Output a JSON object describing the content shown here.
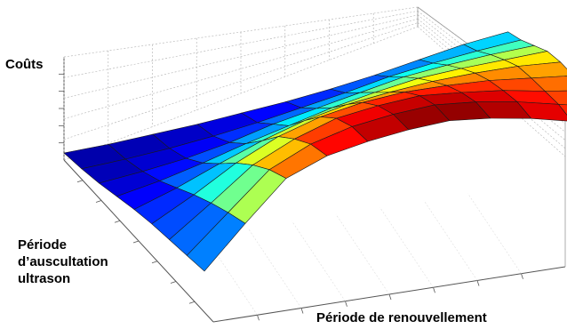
{
  "chart_data": {
    "type": "surface",
    "title": "",
    "zlabel": "Coûts",
    "ylabel_lines": [
      "Période",
      "d’auscultation",
      "ultrason"
    ],
    "xlabel": "Période de renouvellement",
    "grid": true,
    "colormap": "jet",
    "z": [
      [
        0.04,
        0.04,
        0.05,
        0.06,
        0.08,
        0.1,
        0.13,
        0.17,
        0.22,
        0.27,
        0.3
      ],
      [
        0.04,
        0.05,
        0.07,
        0.1,
        0.14,
        0.19,
        0.24,
        0.3,
        0.34,
        0.37,
        0.39
      ],
      [
        0.05,
        0.08,
        0.12,
        0.18,
        0.26,
        0.32,
        0.38,
        0.44,
        0.47,
        0.49,
        0.5
      ],
      [
        0.07,
        0.13,
        0.21,
        0.3,
        0.38,
        0.46,
        0.52,
        0.57,
        0.59,
        0.6,
        0.61
      ],
      [
        0.09,
        0.2,
        0.33,
        0.45,
        0.55,
        0.62,
        0.66,
        0.69,
        0.7,
        0.7,
        0.68
      ],
      [
        0.1,
        0.27,
        0.46,
        0.61,
        0.71,
        0.77,
        0.8,
        0.8,
        0.79,
        0.76,
        0.73
      ],
      [
        0.1,
        0.33,
        0.57,
        0.72,
        0.83,
        0.88,
        0.91,
        0.89,
        0.86,
        0.81,
        0.77
      ],
      [
        0.1,
        0.38,
        0.66,
        0.81,
        0.9,
        0.95,
        0.98,
        0.96,
        0.92,
        0.86,
        0.8
      ],
      [
        0.1,
        0.42,
        0.72,
        0.85,
        0.92,
        0.97,
        1.0,
        0.98,
        0.94,
        0.88,
        0.82
      ]
    ]
  }
}
